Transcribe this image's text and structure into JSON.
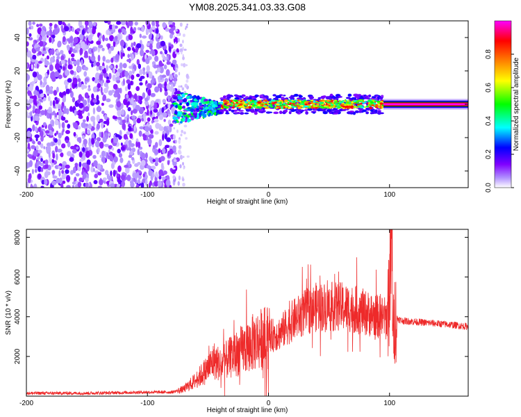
{
  "title": "YM08.2025.341.03.33.G08",
  "chart_data": [
    {
      "type": "heatmap",
      "title": "YM08.2025.341.03.33.G08",
      "xlabel": "Height of straight line (km)",
      "ylabel": "Frequency (Hz)",
      "xlim": [
        -200,
        165
      ],
      "ylim": [
        -50,
        50
      ],
      "xticks": [
        -200,
        -100,
        0,
        100
      ],
      "xtick_labels": [
        "-200",
        "-100",
        "0",
        "100"
      ],
      "yticks": [
        -40,
        -20,
        0,
        20,
        40
      ],
      "ytick_labels": [
        "-40",
        "-20",
        "0",
        "20",
        "40"
      ],
      "colorbar": {
        "label": "Normalized spectral amplitude",
        "range": [
          0,
          1
        ],
        "ticks": [
          0.0,
          0.2,
          0.4,
          0.6,
          0.8
        ],
        "tick_labels": [
          "0.0",
          "0.2",
          "0.4",
          "0.6",
          "0.8"
        ],
        "colormap": [
          "#ffffff",
          "#8000ff",
          "#0000ff",
          "#00ffff",
          "#00ff00",
          "#ffff00",
          "#ff8000",
          "#ff0000",
          "#ff00ff"
        ]
      },
      "regions": [
        {
          "x": [
            -200,
            -75
          ],
          "freq": [
            -50,
            50
          ],
          "description": "noise",
          "amplitude": [
            0.0,
            0.2
          ]
        },
        {
          "x": [
            -78,
            -40
          ],
          "freq": [
            -12,
            8
          ],
          "description": "onset",
          "amplitude": [
            0.1,
            0.5
          ]
        },
        {
          "x": [
            -40,
            95
          ],
          "freq": [
            -4,
            4
          ],
          "description": "signal",
          "amplitude": [
            0.2,
            0.9
          ]
        },
        {
          "x": [
            95,
            165
          ],
          "freq": [
            -1.5,
            1.5
          ],
          "description": "steady signal",
          "amplitude": [
            0.9,
            1.0
          ]
        }
      ],
      "center_frequency": 0
    },
    {
      "type": "line",
      "xlabel": "Height of straight line (km)",
      "ylabel": "SNR (10 * v/v)",
      "xlim": [
        -200,
        165
      ],
      "ylim": [
        0,
        8400
      ],
      "xticks": [
        -200,
        -100,
        0,
        100
      ],
      "xtick_labels": [
        "-200",
        "-100",
        "0",
        "100"
      ],
      "yticks": [
        2000,
        4000,
        6000,
        8000
      ],
      "ytick_labels": [
        "2000",
        "4000",
        "6000",
        "8000"
      ],
      "series": [
        {
          "name": "SNR",
          "color": "#ee2a2a",
          "x": [
            -200,
            -150,
            -100,
            -80,
            -70,
            -60,
            -50,
            -45,
            -40,
            -30,
            -20,
            -10,
            0,
            10,
            20,
            30,
            40,
            50,
            60,
            70,
            80,
            90,
            98,
            101,
            102,
            103,
            104,
            110,
            130,
            150,
            165
          ],
          "y": [
            150,
            150,
            200,
            200,
            350,
            800,
            1400,
            1800,
            1600,
            2000,
            2400,
            2800,
            3000,
            3200,
            3800,
            4200,
            4500,
            4500,
            4500,
            4400,
            4200,
            4000,
            3900,
            6500,
            8200,
            3000,
            4000,
            3800,
            3700,
            3600,
            3500
          ]
        }
      ]
    }
  ]
}
